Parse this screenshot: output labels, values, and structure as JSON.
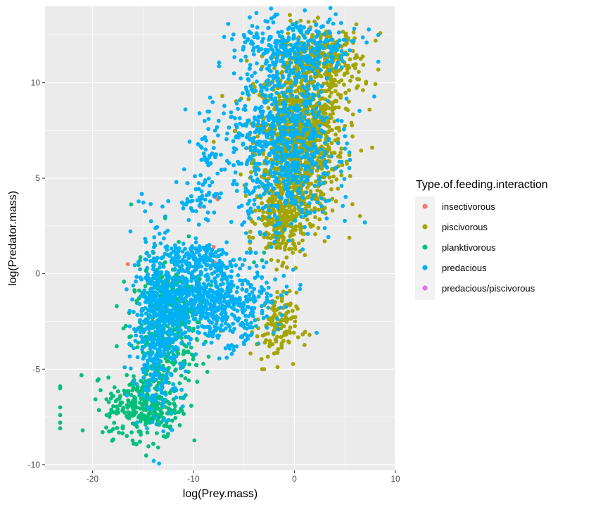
{
  "chart_data": {
    "type": "scatter",
    "title": "",
    "xlabel": "log(Prey.mass)",
    "ylabel": "log(Predator.mass)",
    "xlim": [
      -24.7,
      10
    ],
    "ylim": [
      -10.3,
      14
    ],
    "x_ticks": [
      -20,
      -10,
      0,
      10
    ],
    "y_ticks": [
      -10,
      -5,
      0,
      5,
      10
    ],
    "x_tick_labels": [
      "-20",
      "-10",
      "0",
      "10"
    ],
    "y_tick_labels": [
      "-10",
      "-5",
      "0",
      "5",
      "10"
    ],
    "grid": true,
    "legend": {
      "title": "Type.of.feeding.interaction",
      "placement": "right"
    },
    "series": [
      {
        "name": "insectivorous",
        "color": "#F8766D",
        "points": [
          [
            -16.5,
            0.5
          ],
          [
            -9.3,
            3.5
          ],
          [
            -7.8,
            4.0
          ],
          [
            -7.6,
            3.9
          ],
          [
            -7.9,
            0.6
          ],
          [
            -8.0,
            1.4
          ]
        ]
      },
      {
        "name": "piscivorous",
        "color": "#A3A500",
        "clusters": [
          {
            "cx": 0.5,
            "cy": 7.0,
            "sx": 2.2,
            "sy": 2.0,
            "n": 900
          },
          {
            "cx": 2.8,
            "cy": 11.0,
            "sx": 2.0,
            "sy": 1.0,
            "n": 300
          },
          {
            "cx": -1.2,
            "cy": 2.8,
            "sx": 1.2,
            "sy": 1.0,
            "n": 260
          },
          {
            "cx": -1.8,
            "cy": -2.8,
            "sx": 1.0,
            "sy": 0.9,
            "n": 120
          }
        ],
        "points": [
          [
            1.5,
            -3.2
          ],
          [
            -3.0,
            -5.0
          ],
          [
            -7.3,
            -3.0
          ],
          [
            3.0,
            1.7
          ],
          [
            -4.4,
            1.3
          ],
          [
            -8.0,
            6.9
          ],
          [
            7.7,
            6.6
          ],
          [
            8.5,
            12.6
          ],
          [
            -3.2,
            -5.0
          ]
        ]
      },
      {
        "name": "planktivorous",
        "color": "#00BF7D",
        "clusters": [
          {
            "cx": -15.0,
            "cy": -7.0,
            "sx": 1.8,
            "sy": 0.8,
            "n": 260
          },
          {
            "cx": -13.0,
            "cy": -3.5,
            "sx": 1.6,
            "sy": 2.0,
            "n": 330
          },
          {
            "cx": -12.0,
            "cy": -1.2,
            "sx": 1.5,
            "sy": 0.8,
            "n": 140
          }
        ],
        "points": [
          [
            -23.2,
            -5.9
          ],
          [
            -23.2,
            -6.0
          ],
          [
            -23.2,
            -7.0
          ],
          [
            -23.2,
            -7.4
          ],
          [
            -23.2,
            -7.8
          ],
          [
            -23.2,
            -8.1
          ],
          [
            -19.5,
            -5.6
          ],
          [
            -19.2,
            -6.1
          ],
          [
            -19.0,
            -8.3
          ],
          [
            -18.6,
            -7.4
          ],
          [
            -16.6,
            -8.5
          ],
          [
            -15.3,
            -8.8
          ],
          [
            -13.5,
            -9.1
          ],
          [
            -12.2,
            -7.2
          ],
          [
            -12.3,
            -8.0
          ],
          [
            -15.3,
            0.7
          ],
          [
            -17.6,
            -1.7
          ],
          [
            -17.6,
            -3.8
          ],
          [
            -11.8,
            1.1
          ],
          [
            -12.6,
            1.0
          ],
          [
            -12.8,
            0.6
          ],
          [
            -3.0,
            1.1
          ],
          [
            -3.2,
            0.7
          ],
          [
            -12.8,
            2.9
          ],
          [
            -4.0,
            0.6
          ]
        ]
      },
      {
        "name": "predacious",
        "color": "#00B0F6",
        "clusters": [
          {
            "cx": -1.0,
            "cy": 7.0,
            "sx": 2.5,
            "sy": 2.5,
            "n": 800
          },
          {
            "cx": 1.5,
            "cy": 11.7,
            "sx": 2.5,
            "sy": 0.8,
            "n": 200
          },
          {
            "cx": -2.5,
            "cy": 11.8,
            "sx": 1.8,
            "sy": 0.8,
            "n": 80
          },
          {
            "cx": -8.0,
            "cy": -1.5,
            "sx": 2.8,
            "sy": 1.0,
            "n": 600
          },
          {
            "cx": -13.5,
            "cy": -2.5,
            "sx": 1.3,
            "sy": 2.2,
            "n": 500
          },
          {
            "cx": -9.5,
            "cy": 0.8,
            "sx": 1.5,
            "sy": 0.4,
            "n": 150
          },
          {
            "cx": -9.5,
            "cy": 3.8,
            "sx": 1.0,
            "sy": 0.5,
            "n": 40
          },
          {
            "cx": -8.0,
            "cy": 6.0,
            "sx": 1.3,
            "sy": 1.2,
            "n": 60
          }
        ],
        "points": [
          [
            -10.8,
            8.6
          ],
          [
            -9.4,
            8.4
          ],
          [
            -8.9,
            8.0
          ],
          [
            -8.5,
            8.1
          ],
          [
            -7.5,
            8.0
          ],
          [
            -11.7,
            4.8
          ],
          [
            -12.8,
            3.0
          ],
          [
            -12.5,
            3.8
          ],
          [
            2.2,
            -3.1
          ],
          [
            -8.8,
            -0.7
          ],
          [
            -6.2,
            -4.2
          ],
          [
            -6.7,
            -4.4
          ],
          [
            -14.6,
            -8.1
          ],
          [
            -13.8,
            -7.5
          ],
          [
            -4.3,
            12.6
          ],
          [
            -5.0,
            12.5
          ],
          [
            -3.1,
            12.3
          ],
          [
            8.3,
            12.5
          ]
        ]
      },
      {
        "name": "predacious/piscivorous",
        "color": "#E76BF3",
        "points": []
      }
    ]
  }
}
